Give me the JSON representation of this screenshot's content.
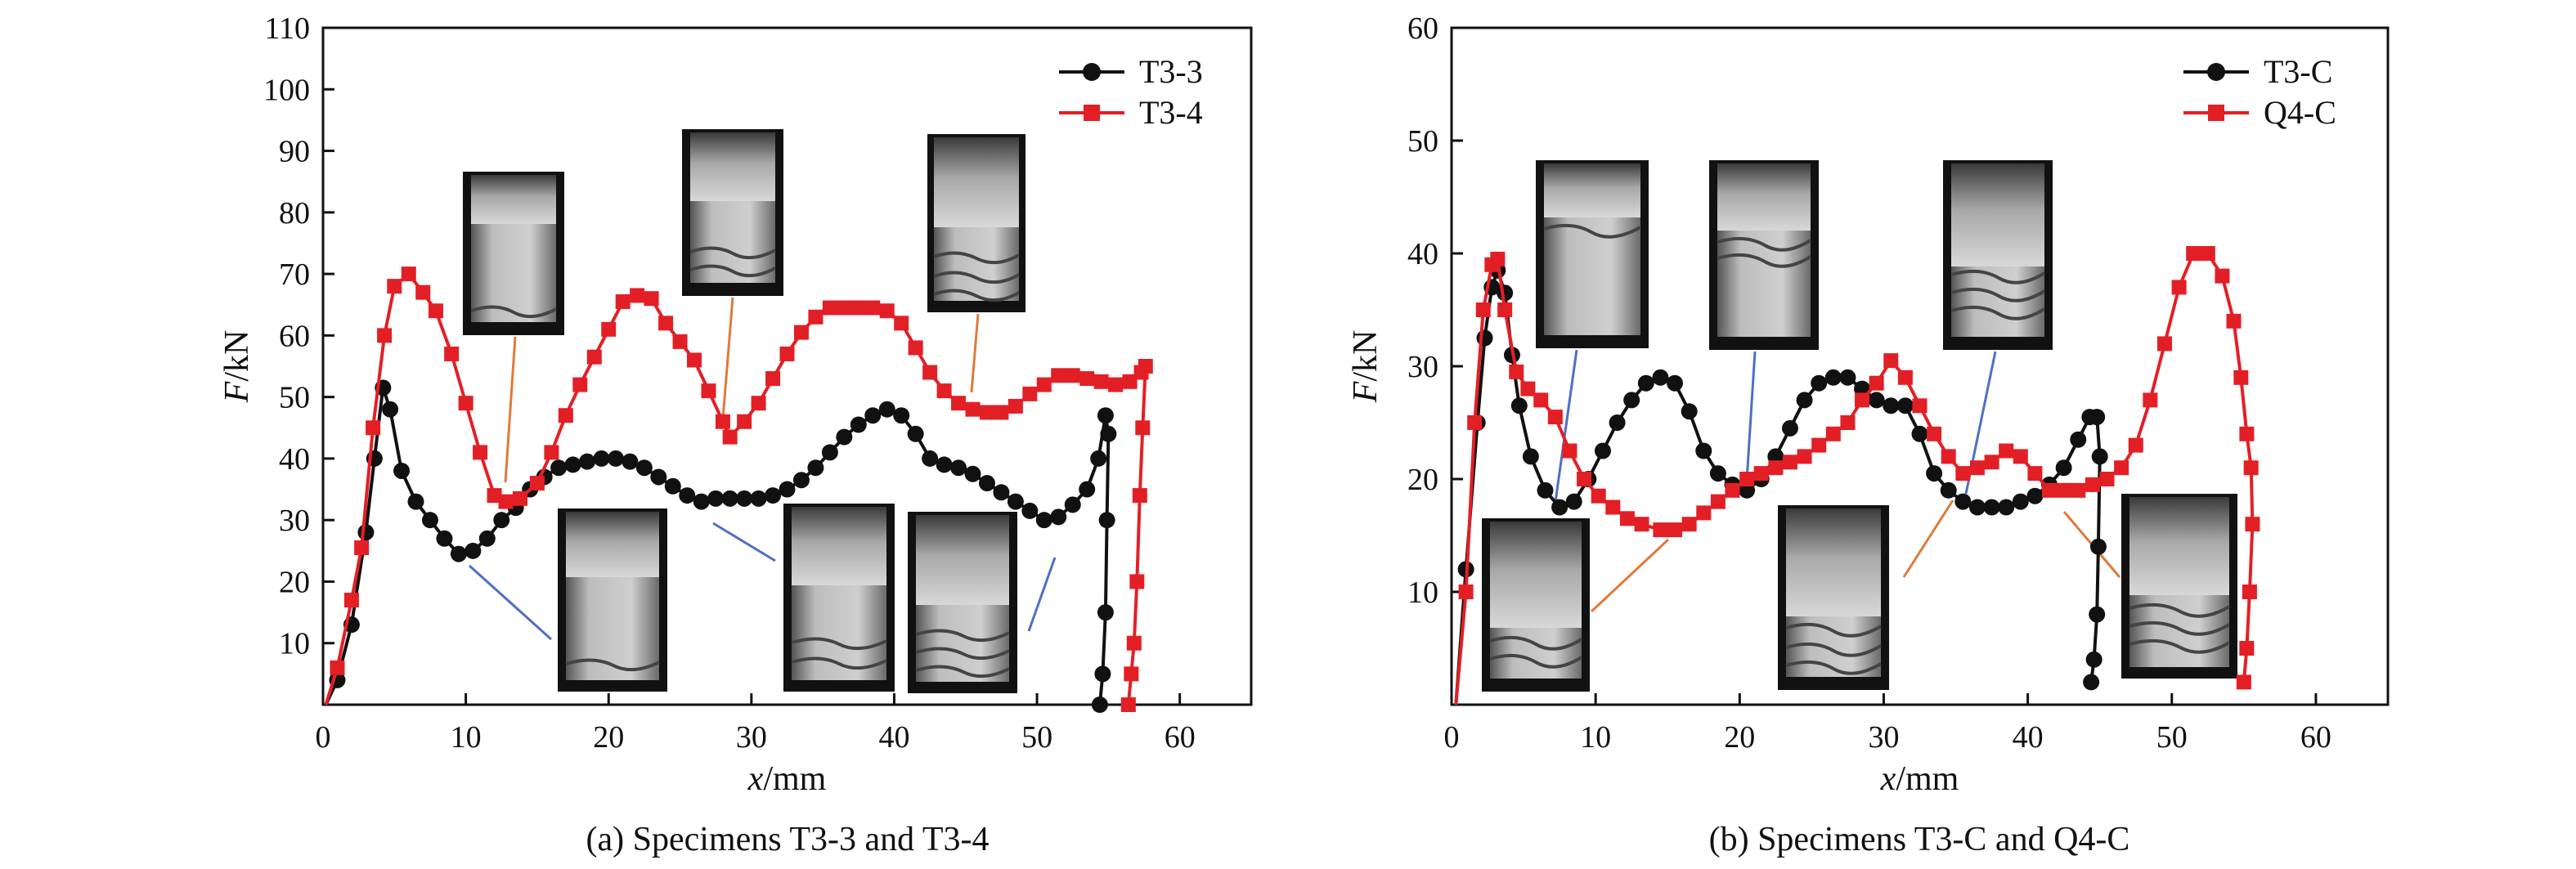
{
  "chart_data": [
    {
      "type": "line",
      "caption": "(a) Specimens T3-3 and T3-4",
      "xlabel_var": "x",
      "xlabel_unit": "/mm",
      "ylabel_var": "F",
      "ylabel_unit": "/kN",
      "xlim": [
        0,
        65
      ],
      "ylim": [
        0,
        110
      ],
      "xticks": [
        0,
        10,
        20,
        30,
        40,
        50,
        60
      ],
      "yticks": [
        10,
        20,
        30,
        40,
        50,
        60,
        70,
        80,
        90,
        100,
        110
      ],
      "legend_position": "top-right",
      "series": [
        {
          "name": "T3-3",
          "color": "#111111",
          "marker": "circle",
          "points": [
            [
              0.2,
              0
            ],
            [
              1,
              4
            ],
            [
              2,
              13
            ],
            [
              3,
              28
            ],
            [
              3.6,
              40
            ],
            [
              4.2,
              51.5
            ],
            [
              4.7,
              48
            ],
            [
              5.5,
              38
            ],
            [
              6.5,
              33
            ],
            [
              7.5,
              30
            ],
            [
              8.5,
              27
            ],
            [
              9.5,
              24.5
            ],
            [
              10.5,
              25
            ],
            [
              11.5,
              27
            ],
            [
              12.5,
              30
            ],
            [
              13.5,
              32
            ],
            [
              14.5,
              35
            ],
            [
              15.5,
              37
            ],
            [
              16.5,
              38.5
            ],
            [
              17.5,
              39
            ],
            [
              18.5,
              39.5
            ],
            [
              19.5,
              40
            ],
            [
              20.5,
              40
            ],
            [
              21.5,
              39.5
            ],
            [
              22.5,
              38.5
            ],
            [
              23.5,
              37
            ],
            [
              24.5,
              35.5
            ],
            [
              25.5,
              34
            ],
            [
              26.5,
              33
            ],
            [
              27.5,
              33.5
            ],
            [
              28.5,
              33.5
            ],
            [
              29.5,
              33.5
            ],
            [
              30.5,
              33.5
            ],
            [
              31.5,
              34
            ],
            [
              32.5,
              35
            ],
            [
              33.5,
              36.5
            ],
            [
              34.5,
              38.5
            ],
            [
              35.5,
              41
            ],
            [
              36.5,
              43.5
            ],
            [
              37.5,
              45.5
            ],
            [
              38.5,
              47
            ],
            [
              39.5,
              48
            ],
            [
              40.5,
              47
            ],
            [
              41.5,
              44
            ],
            [
              42.5,
              40
            ],
            [
              43.5,
              39
            ],
            [
              44.5,
              38.5
            ],
            [
              45.5,
              37.5
            ],
            [
              46.5,
              36
            ],
            [
              47.5,
              34.5
            ],
            [
              48.5,
              33
            ],
            [
              49.5,
              31.5
            ],
            [
              50.5,
              30
            ],
            [
              51.5,
              30.5
            ],
            [
              52.5,
              32.5
            ],
            [
              53.5,
              35
            ],
            [
              54.3,
              40
            ],
            [
              54.8,
              47
            ],
            [
              55,
              44
            ],
            [
              54.9,
              30
            ],
            [
              54.8,
              15
            ],
            [
              54.6,
              5
            ],
            [
              54.4,
              0
            ]
          ]
        },
        {
          "name": "T3-4",
          "color": "#e31f26",
          "marker": "square",
          "points": [
            [
              0.2,
              0
            ],
            [
              1,
              6
            ],
            [
              2,
              17
            ],
            [
              2.7,
              25.5
            ],
            [
              3.5,
              45
            ],
            [
              4.3,
              60
            ],
            [
              5,
              68
            ],
            [
              6,
              70
            ],
            [
              7,
              67
            ],
            [
              7.9,
              64
            ],
            [
              9,
              57
            ],
            [
              10,
              49
            ],
            [
              11,
              41
            ],
            [
              12,
              34
            ],
            [
              12.8,
              33
            ],
            [
              13.8,
              33.5
            ],
            [
              15,
              36
            ],
            [
              16,
              41
            ],
            [
              17,
              47
            ],
            [
              18,
              52
            ],
            [
              19,
              56.5
            ],
            [
              20,
              61
            ],
            [
              21,
              65.5
            ],
            [
              22,
              66.5
            ],
            [
              23,
              66
            ],
            [
              24,
              62
            ],
            [
              25,
              59
            ],
            [
              26,
              56
            ],
            [
              27,
              51
            ],
            [
              28,
              46
            ],
            [
              28.5,
              43.5
            ],
            [
              29.5,
              46
            ],
            [
              30.5,
              49
            ],
            [
              31.5,
              53
            ],
            [
              32.5,
              57
            ],
            [
              33.5,
              60.5
            ],
            [
              34.5,
              63
            ],
            [
              35.5,
              64.5
            ],
            [
              36.5,
              64.5
            ],
            [
              37.5,
              64.5
            ],
            [
              38.5,
              64.5
            ],
            [
              39.5,
              64
            ],
            [
              40.5,
              62
            ],
            [
              41.5,
              58
            ],
            [
              42.5,
              54
            ],
            [
              43.5,
              51
            ],
            [
              44.5,
              49
            ],
            [
              45.5,
              48
            ],
            [
              46.5,
              47.5
            ],
            [
              47.5,
              47.5
            ],
            [
              48.5,
              48.5
            ],
            [
              49.5,
              50.5
            ],
            [
              50.5,
              52
            ],
            [
              51.5,
              53.5
            ],
            [
              52.5,
              53.5
            ],
            [
              53.5,
              53
            ],
            [
              54.5,
              52.5
            ],
            [
              55.5,
              52
            ],
            [
              56.5,
              52.5
            ],
            [
              57.3,
              54
            ],
            [
              57.6,
              55
            ],
            [
              57.4,
              45
            ],
            [
              57.2,
              34
            ],
            [
              57,
              20
            ],
            [
              56.8,
              10
            ],
            [
              56.6,
              5
            ],
            [
              56.4,
              0
            ]
          ]
        }
      ]
    },
    {
      "type": "line",
      "caption": "(b) Specimens T3-C and Q4-C",
      "xlabel_var": "x",
      "xlabel_unit": "/mm",
      "ylabel_var": "F",
      "ylabel_unit": "/kN",
      "xlim": [
        0,
        65
      ],
      "ylim": [
        0,
        60
      ],
      "xticks": [
        0,
        10,
        20,
        30,
        40,
        50,
        60
      ],
      "yticks": [
        10,
        20,
        30,
        40,
        50,
        60
      ],
      "legend_position": "top-right",
      "series": [
        {
          "name": "T3-C",
          "color": "#111111",
          "marker": "circle",
          "points": [
            [
              0.3,
              0
            ],
            [
              1,
              12
            ],
            [
              1.8,
              25
            ],
            [
              2.3,
              32.5
            ],
            [
              2.8,
              37
            ],
            [
              3.2,
              38.5
            ],
            [
              3.7,
              36.5
            ],
            [
              4.2,
              31
            ],
            [
              4.7,
              26.5
            ],
            [
              5.5,
              22
            ],
            [
              6.5,
              19
            ],
            [
              7.5,
              17.5
            ],
            [
              8.5,
              18
            ],
            [
              9.5,
              20
            ],
            [
              10.5,
              22.5
            ],
            [
              11.5,
              25
            ],
            [
              12.5,
              27
            ],
            [
              13.5,
              28.5
            ],
            [
              14.5,
              29
            ],
            [
              15.5,
              28.5
            ],
            [
              16.5,
              26
            ],
            [
              17.5,
              22.5
            ],
            [
              18.5,
              20.5
            ],
            [
              19.5,
              19.5
            ],
            [
              20.5,
              19
            ],
            [
              21.5,
              20
            ],
            [
              22.5,
              22
            ],
            [
              23.5,
              24.5
            ],
            [
              24.5,
              27
            ],
            [
              25.5,
              28.5
            ],
            [
              26.5,
              29
            ],
            [
              27.5,
              29
            ],
            [
              28.5,
              28
            ],
            [
              29.5,
              27
            ],
            [
              30.5,
              26.5
            ],
            [
              31.5,
              26.5
            ],
            [
              32.5,
              24
            ],
            [
              33.5,
              20.5
            ],
            [
              34.5,
              19
            ],
            [
              35.5,
              18
            ],
            [
              36.5,
              17.5
            ],
            [
              37.5,
              17.5
            ],
            [
              38.5,
              17.5
            ],
            [
              39.5,
              18
            ],
            [
              40.5,
              18.5
            ],
            [
              41.5,
              19.5
            ],
            [
              42.5,
              21
            ],
            [
              43.5,
              23.5
            ],
            [
              44.3,
              25.5
            ],
            [
              44.8,
              25.5
            ],
            [
              45,
              22
            ],
            [
              44.9,
              14
            ],
            [
              44.8,
              8
            ],
            [
              44.6,
              4
            ],
            [
              44.4,
              2
            ]
          ]
        },
        {
          "name": "Q4-C",
          "color": "#e31f26",
          "marker": "square",
          "points": [
            [
              0.3,
              0
            ],
            [
              1,
              10
            ],
            [
              1.6,
              25
            ],
            [
              2.2,
              35
            ],
            [
              2.8,
              39
            ],
            [
              3.2,
              39.5
            ],
            [
              3.7,
              35
            ],
            [
              4.5,
              29.5
            ],
            [
              5.3,
              28
            ],
            [
              6.2,
              27
            ],
            [
              7.2,
              25.5
            ],
            [
              8.2,
              22.5
            ],
            [
              9.2,
              20
            ],
            [
              10.2,
              18.5
            ],
            [
              11.2,
              17.5
            ],
            [
              12.2,
              16.5
            ],
            [
              13.2,
              16
            ],
            [
              14.5,
              15.5
            ],
            [
              15.5,
              15.5
            ],
            [
              16.5,
              16
            ],
            [
              17.5,
              17
            ],
            [
              18.5,
              18
            ],
            [
              19.5,
              19
            ],
            [
              20.5,
              20
            ],
            [
              21.5,
              20.5
            ],
            [
              22.5,
              21
            ],
            [
              23.5,
              21.5
            ],
            [
              24.5,
              22
            ],
            [
              25.5,
              23
            ],
            [
              26.5,
              24
            ],
            [
              27.5,
              25
            ],
            [
              28.5,
              27
            ],
            [
              29.5,
              28.5
            ],
            [
              30.5,
              30.5
            ],
            [
              31.5,
              29
            ],
            [
              32.5,
              26.5
            ],
            [
              33.5,
              24
            ],
            [
              34.5,
              22
            ],
            [
              35.5,
              20.5
            ],
            [
              36.5,
              21
            ],
            [
              37.5,
              21.5
            ],
            [
              38.5,
              22.5
            ],
            [
              39.5,
              22
            ],
            [
              40.5,
              20.5
            ],
            [
              41.5,
              19
            ],
            [
              42.5,
              19
            ],
            [
              43.5,
              19
            ],
            [
              44.5,
              19.5
            ],
            [
              45.5,
              20
            ],
            [
              46.5,
              21
            ],
            [
              47.5,
              23
            ],
            [
              48.5,
              27
            ],
            [
              49.5,
              32
            ],
            [
              50.5,
              37
            ],
            [
              51.5,
              40
            ],
            [
              52.5,
              40
            ],
            [
              53.5,
              38
            ],
            [
              54.3,
              34
            ],
            [
              54.8,
              29
            ],
            [
              55.2,
              24
            ],
            [
              55.5,
              21
            ],
            [
              55.6,
              16
            ],
            [
              55.4,
              10
            ],
            [
              55.2,
              5
            ],
            [
              55,
              2
            ]
          ]
        }
      ]
    }
  ]
}
